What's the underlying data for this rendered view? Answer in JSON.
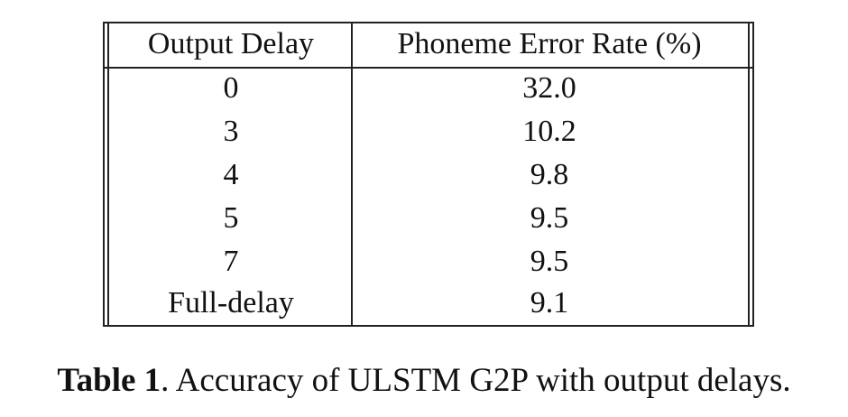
{
  "table": {
    "headers": [
      "Output Delay",
      "Phoneme Error Rate (%)"
    ],
    "rows": [
      [
        "0",
        "32.0"
      ],
      [
        "3",
        "10.2"
      ],
      [
        "4",
        "9.8"
      ],
      [
        "5",
        "9.5"
      ],
      [
        "7",
        "9.5"
      ],
      [
        "Full-delay",
        "9.1"
      ]
    ]
  },
  "caption": {
    "label": "Table 1",
    "text": ". Accuracy of ULSTM G2P with output delays."
  }
}
